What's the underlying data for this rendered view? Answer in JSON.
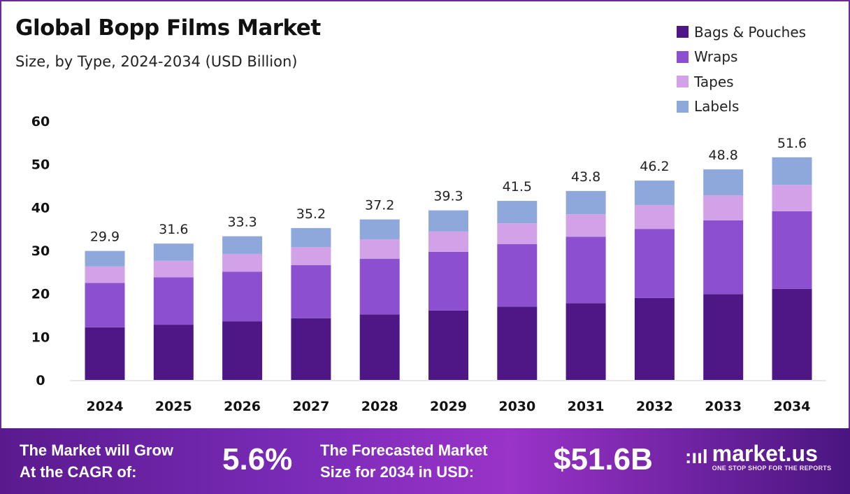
{
  "chart_data": {
    "type": "bar",
    "stacked": true,
    "title": "Global Bopp Films Market",
    "subtitle": "Size, by Type, 2024-2034 (USD Billion)",
    "categories": [
      "2024",
      "2025",
      "2026",
      "2027",
      "2028",
      "2029",
      "2030",
      "2031",
      "2032",
      "2033",
      "2034"
    ],
    "series": [
      {
        "name": "Bags & Pouches",
        "color": "#4f1785",
        "values": [
          12.2,
          12.8,
          13.6,
          14.3,
          15.2,
          16.1,
          17.0,
          17.8,
          19.0,
          19.9,
          21.1
        ]
      },
      {
        "name": "Wraps",
        "color": "#8b4fcf",
        "values": [
          10.3,
          11.0,
          11.5,
          12.3,
          12.9,
          13.6,
          14.5,
          15.4,
          16.0,
          17.1,
          18.0
        ]
      },
      {
        "name": "Tapes",
        "color": "#d3a1e8",
        "values": [
          3.8,
          3.8,
          4.1,
          4.2,
          4.5,
          4.7,
          4.8,
          5.2,
          5.5,
          5.8,
          6.1
        ]
      },
      {
        "name": "Labels",
        "color": "#8ea8dc",
        "values": [
          3.6,
          4.0,
          4.1,
          4.4,
          4.6,
          4.9,
          5.2,
          5.4,
          5.7,
          6.0,
          6.4
        ]
      }
    ],
    "totals": [
      "29.9",
      "31.6",
      "33.3",
      "35.2",
      "37.2",
      "39.3",
      "41.5",
      "43.8",
      "46.2",
      "48.8",
      "51.6"
    ],
    "yticks": [
      "0",
      "10",
      "20",
      "30",
      "40",
      "50",
      "60"
    ],
    "ylim": [
      0,
      60
    ],
    "grid": false,
    "legend": "top-right"
  },
  "footer": {
    "cagr_label_1": "The Market will Grow",
    "cagr_label_2": "At the CAGR of:",
    "cagr_value": "5.6%",
    "forecast_label_1": "The Forecasted Market",
    "forecast_label_2": "Size for 2034 in USD:",
    "forecast_value": "$51.6B",
    "logo_name": "market.us",
    "logo_tagline": "ONE STOP SHOP FOR THE REPORTS"
  }
}
